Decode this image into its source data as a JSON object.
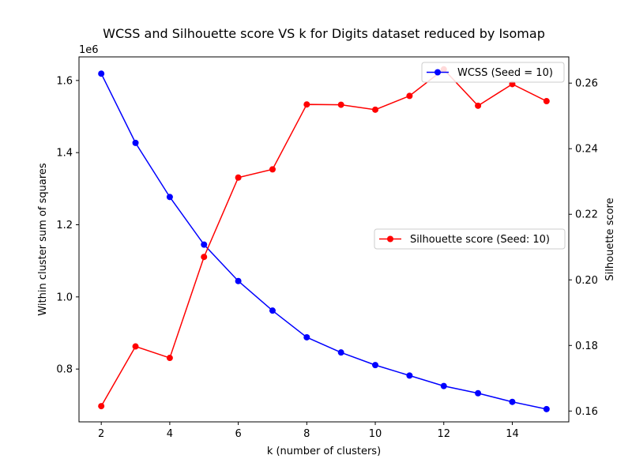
{
  "chart_data": {
    "type": "line",
    "title": "WCSS and Silhouette score VS k for Digits dataset reduced by Isomap",
    "xlabel": "k (number of clusters)",
    "ylabel_left": "Within cluster sum of squares",
    "ylabel_right": "Silhouette score",
    "left_offset_label": "1e6",
    "x": [
      2,
      3,
      4,
      5,
      6,
      7,
      8,
      9,
      10,
      11,
      12,
      13,
      14,
      15
    ],
    "x_ticks": [
      2,
      4,
      6,
      8,
      10,
      12,
      14
    ],
    "xlim": [
      1.35,
      15.65
    ],
    "left_axis": {
      "ylim": [
        0.6536,
        1.6654
      ],
      "ticks": [
        0.8,
        1.0,
        1.2,
        1.4,
        1.6
      ],
      "tick_labels": [
        "0.8",
        "1.0",
        "1.2",
        "1.4",
        "1.6"
      ]
    },
    "right_axis": {
      "ylim": [
        0.1567,
        0.268
      ],
      "ticks": [
        0.16,
        0.18,
        0.2,
        0.22,
        0.24,
        0.26
      ],
      "tick_labels": [
        "0.16",
        "0.18",
        "0.20",
        "0.22",
        "0.24",
        "0.26"
      ]
    },
    "series": [
      {
        "name": "WCSS (Seed = 10)",
        "axis": "left",
        "color": "#0000ff",
        "values": [
          1.619,
          1.427,
          1.277,
          1.145,
          1.044,
          0.962,
          0.888,
          0.846,
          0.811,
          0.782,
          0.753,
          0.733,
          0.709,
          0.689
        ],
        "legend_location": "upper right"
      },
      {
        "name": "Silhouette score (Seed: 10)",
        "axis": "right",
        "color": "#ff0000",
        "values": [
          0.1615,
          0.1797,
          0.1762,
          0.207,
          0.2312,
          0.2337,
          0.2535,
          0.2534,
          0.2519,
          0.2561,
          0.2642,
          0.2531,
          0.2597,
          0.2545
        ],
        "legend_location": "center right"
      }
    ]
  }
}
